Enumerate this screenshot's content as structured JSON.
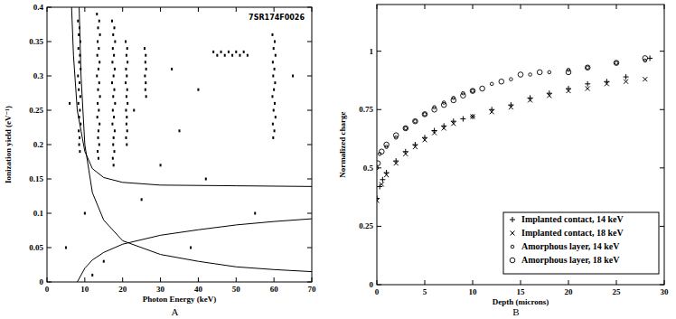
{
  "chart_data": [
    {
      "type": "scatter",
      "caption": "A",
      "annotations": [
        "7SR174F0026"
      ],
      "x_label": "Photon Energy (keV)",
      "y_label": "Ionization yield (eV⁻¹)",
      "xlim": [
        0,
        70
      ],
      "xticks": [
        0,
        10,
        20,
        30,
        40,
        50,
        60,
        70
      ],
      "ylim": [
        0,
        0.4
      ],
      "yticks": [
        0,
        0.05,
        0.1,
        0.15,
        0.2,
        0.25,
        0.3,
        0.35,
        0.4
      ],
      "grid": false,
      "series": [
        {
          "type": "scatter",
          "marker": "dot",
          "color": "#000000",
          "x": [
            8.2,
            8.6,
            8.4,
            8.8,
            8.3,
            8.7,
            8.5,
            8.9,
            8.2,
            8.6,
            8.4,
            8.8,
            8.3,
            8.7,
            8.5,
            8.9,
            8.4,
            8.6,
            8.5,
            8.7,
            13.2,
            13.8,
            13.5,
            14,
            13.4,
            13.7,
            13.3,
            13.9,
            13.6,
            13.2,
            13.8,
            13.5,
            14,
            13.4,
            13.7,
            13.3,
            13.9,
            13.6,
            13.5,
            13.8,
            13.4,
            13.6,
            17.2,
            17.8,
            17.5,
            18,
            17.4,
            17.7,
            17.3,
            17.9,
            17.6,
            17.2,
            17.8,
            17.5,
            18,
            17.4,
            17.7,
            17.3,
            17.9,
            17.6,
            17.5,
            17.8,
            17.4,
            17.6,
            20.8,
            21.2,
            21,
            21.3,
            20.9,
            21.1,
            20.8,
            21.2,
            21,
            21.3,
            20.9,
            21.1,
            21,
            21.2,
            20.9,
            21.1,
            25.8,
            26.1,
            26,
            26.2,
            25.9,
            26.1,
            26,
            26.2,
            44,
            45,
            46,
            47,
            48,
            49,
            50,
            51,
            52,
            53,
            59.6,
            60.2,
            59.9,
            60.4,
            59.7,
            60.1,
            59.8,
            60.3,
            60,
            59.6,
            60.2,
            59.9,
            60.4,
            59.7,
            60.1,
            59.8,
            5,
            6,
            10,
            12,
            15,
            25,
            30,
            35,
            38,
            40,
            42,
            55,
            65,
            23,
            33
          ],
          "values": [
            0.38,
            0.37,
            0.36,
            0.35,
            0.34,
            0.33,
            0.32,
            0.31,
            0.3,
            0.29,
            0.28,
            0.27,
            0.26,
            0.25,
            0.24,
            0.23,
            0.22,
            0.21,
            0.2,
            0.19,
            0.39,
            0.38,
            0.37,
            0.36,
            0.35,
            0.34,
            0.33,
            0.32,
            0.31,
            0.3,
            0.29,
            0.28,
            0.27,
            0.26,
            0.25,
            0.24,
            0.23,
            0.22,
            0.21,
            0.2,
            0.19,
            0.18,
            0.38,
            0.37,
            0.36,
            0.35,
            0.34,
            0.33,
            0.32,
            0.31,
            0.3,
            0.29,
            0.28,
            0.27,
            0.26,
            0.25,
            0.24,
            0.23,
            0.22,
            0.21,
            0.2,
            0.19,
            0.18,
            0.17,
            0.35,
            0.34,
            0.33,
            0.32,
            0.31,
            0.3,
            0.29,
            0.28,
            0.27,
            0.26,
            0.25,
            0.24,
            0.23,
            0.22,
            0.21,
            0.2,
            0.34,
            0.33,
            0.32,
            0.31,
            0.3,
            0.29,
            0.28,
            0.27,
            0.335,
            0.33,
            0.335,
            0.33,
            0.335,
            0.33,
            0.335,
            0.33,
            0.335,
            0.33,
            0.36,
            0.35,
            0.34,
            0.33,
            0.32,
            0.31,
            0.3,
            0.29,
            0.28,
            0.27,
            0.26,
            0.25,
            0.24,
            0.23,
            0.22,
            0.21,
            0.05,
            0.26,
            0.1,
            0.01,
            0.03,
            0.12,
            0.17,
            0.22,
            0.05,
            0.28,
            0.15,
            0.1,
            0.3,
            0.25,
            0.31
          ]
        },
        {
          "type": "line",
          "color": "#000000",
          "x": [
            6.5,
            7,
            8,
            10,
            12,
            15,
            20,
            30,
            50,
            70
          ],
          "values": [
            0.4,
            0.33,
            0.25,
            0.19,
            0.165,
            0.152,
            0.145,
            0.141,
            0.14,
            0.139
          ]
        },
        {
          "type": "line",
          "color": "#000000",
          "x": [
            8.5,
            9,
            10,
            12,
            15,
            20,
            30,
            40,
            50,
            60,
            70
          ],
          "values": [
            0.4,
            0.3,
            0.2,
            0.13,
            0.09,
            0.06,
            0.04,
            0.03,
            0.022,
            0.018,
            0.015
          ]
        },
        {
          "type": "line",
          "color": "#000000",
          "x": [
            8,
            10,
            12,
            15,
            20,
            30,
            40,
            50,
            60,
            70
          ],
          "values": [
            0,
            0.02,
            0.032,
            0.043,
            0.055,
            0.068,
            0.076,
            0.083,
            0.088,
            0.092
          ]
        }
      ]
    },
    {
      "type": "scatter",
      "caption": "B",
      "x_label": "Depth (microns)",
      "y_label": "Normalized charge",
      "xlim": [
        0,
        30
      ],
      "xticks": [
        0,
        5,
        10,
        15,
        20,
        25,
        30
      ],
      "ylim": [
        0,
        1.2
      ],
      "yticks": [
        0,
        0.25,
        0.5,
        0.75,
        1
      ],
      "grid": false,
      "legend": "lower right",
      "series": [
        {
          "name": "Implanted contact, 14 keV",
          "marker": "plus",
          "color": "#000000",
          "x": [
            0,
            0.3,
            0.6,
            1,
            2,
            3,
            4,
            5,
            6,
            7,
            8,
            9,
            10,
            12,
            14,
            16,
            18,
            20,
            22,
            24,
            26,
            28.5
          ],
          "values": [
            0.37,
            0.42,
            0.45,
            0.48,
            0.53,
            0.57,
            0.6,
            0.63,
            0.66,
            0.68,
            0.7,
            0.71,
            0.72,
            0.75,
            0.77,
            0.8,
            0.82,
            0.84,
            0.86,
            0.87,
            0.89,
            0.97
          ]
        },
        {
          "name": "Implanted contact, 18 keV",
          "marker": "cross",
          "color": "#000000",
          "x": [
            0,
            0.5,
            1,
            2,
            3,
            4,
            5,
            6,
            7,
            8,
            10,
            12,
            14,
            16,
            18,
            20,
            22,
            24,
            26,
            28
          ],
          "values": [
            0.36,
            0.43,
            0.47,
            0.52,
            0.56,
            0.59,
            0.62,
            0.65,
            0.67,
            0.69,
            0.72,
            0.74,
            0.76,
            0.79,
            0.81,
            0.83,
            0.84,
            0.86,
            0.87,
            0.88
          ]
        },
        {
          "name": "Amorphous layer, 14 keV",
          "marker": "small-circle",
          "color": "#000000",
          "x": [
            0,
            0.3,
            1,
            2,
            3,
            4,
            5,
            6,
            7,
            8,
            9,
            10,
            12,
            14,
            16,
            18,
            20,
            22,
            25,
            28
          ],
          "values": [
            0.5,
            0.56,
            0.59,
            0.63,
            0.67,
            0.7,
            0.73,
            0.76,
            0.78,
            0.8,
            0.82,
            0.83,
            0.86,
            0.88,
            0.9,
            0.91,
            0.92,
            0.93,
            0.95,
            0.96
          ]
        },
        {
          "name": "Amorphous layer, 18 keV",
          "marker": "circle",
          "color": "#000000",
          "x": [
            0.1,
            0.5,
            1,
            2,
            3,
            4,
            5,
            6,
            7,
            8,
            9,
            10,
            11,
            13,
            15,
            17,
            20,
            22,
            25,
            28
          ],
          "values": [
            0.52,
            0.57,
            0.6,
            0.64,
            0.67,
            0.7,
            0.73,
            0.75,
            0.77,
            0.79,
            0.81,
            0.83,
            0.84,
            0.87,
            0.9,
            0.91,
            0.91,
            0.93,
            0.95,
            0.97
          ]
        }
      ]
    }
  ]
}
